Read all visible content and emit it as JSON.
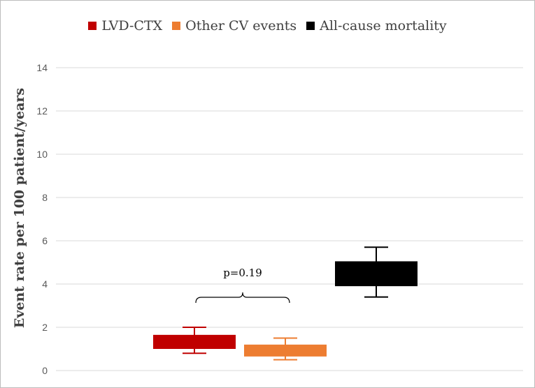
{
  "chart_data": {
    "type": "box",
    "title": "",
    "xlabel": "",
    "ylabel": "Event rate per 100 patient/years",
    "ylim": [
      0,
      15
    ],
    "yticks": [
      0,
      2,
      4,
      6,
      8,
      10,
      12,
      14
    ],
    "grid": true,
    "legend_position": "top-center",
    "legend": [
      {
        "name": "LVD-CTX",
        "color": "#c00000"
      },
      {
        "name": "Other CV events",
        "color": "#ed7d31"
      },
      {
        "name": "All-cause mortality",
        "color": "#000000"
      }
    ],
    "series": [
      {
        "name": "LVD-CTX",
        "color": "#c00000",
        "box_low": 1.0,
        "box_high": 1.65,
        "whisker_low": 0.8,
        "whisker_high": 2.0
      },
      {
        "name": "Other CV events",
        "color": "#ed7d31",
        "box_low": 0.65,
        "box_high": 1.2,
        "whisker_low": 0.5,
        "whisker_high": 1.5
      },
      {
        "name": "All-cause mortality",
        "color": "#000000",
        "box_low": 3.9,
        "box_high": 5.05,
        "whisker_low": 3.4,
        "whisker_high": 5.7
      }
    ],
    "annotations": [
      {
        "text": "p=0.19",
        "between": [
          "LVD-CTX",
          "Other CV events"
        ]
      }
    ]
  }
}
